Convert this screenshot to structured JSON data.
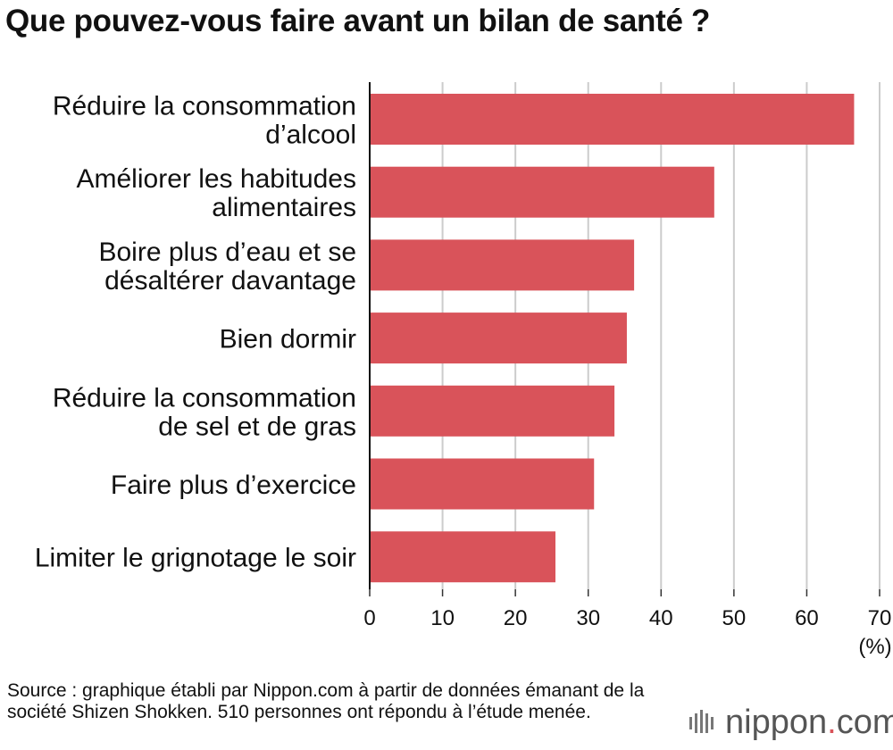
{
  "title": "Que pouvez-vous faire avant un bilan de santé ?",
  "chart_data": {
    "type": "bar",
    "orientation": "horizontal",
    "title": "Que pouvez-vous faire avant un bilan de santé ?",
    "categories": [
      [
        "Réduire la consommation",
        "d’alcool"
      ],
      [
        "Améliorer les habitudes",
        "alimentaires"
      ],
      [
        "Boire plus d’eau et se",
        "désaltérer davantage"
      ],
      [
        "Bien dormir"
      ],
      [
        "Réduire la consommation",
        "de sel et de gras"
      ],
      [
        "Faire plus d’exercice"
      ],
      [
        "Limiter le grignotage le soir"
      ]
    ],
    "values": [
      66.5,
      47.3,
      36.3,
      35.3,
      33.6,
      30.8,
      25.5
    ],
    "xlim": [
      0,
      70
    ],
    "xticks": [
      0,
      10,
      20,
      30,
      40,
      50,
      60,
      70
    ],
    "xlabel": "(%)",
    "grid": true,
    "bar_color": "#d9535a",
    "grid_color": "#cccccc"
  },
  "source": "Source : graphique établi par Nippon.com à partir de données émanant de la société Shizen Shokken. 510 personnes ont répondu à l’étude menée.",
  "logo": {
    "name": "nippon",
    "dot": ".",
    "suffix": "com"
  }
}
